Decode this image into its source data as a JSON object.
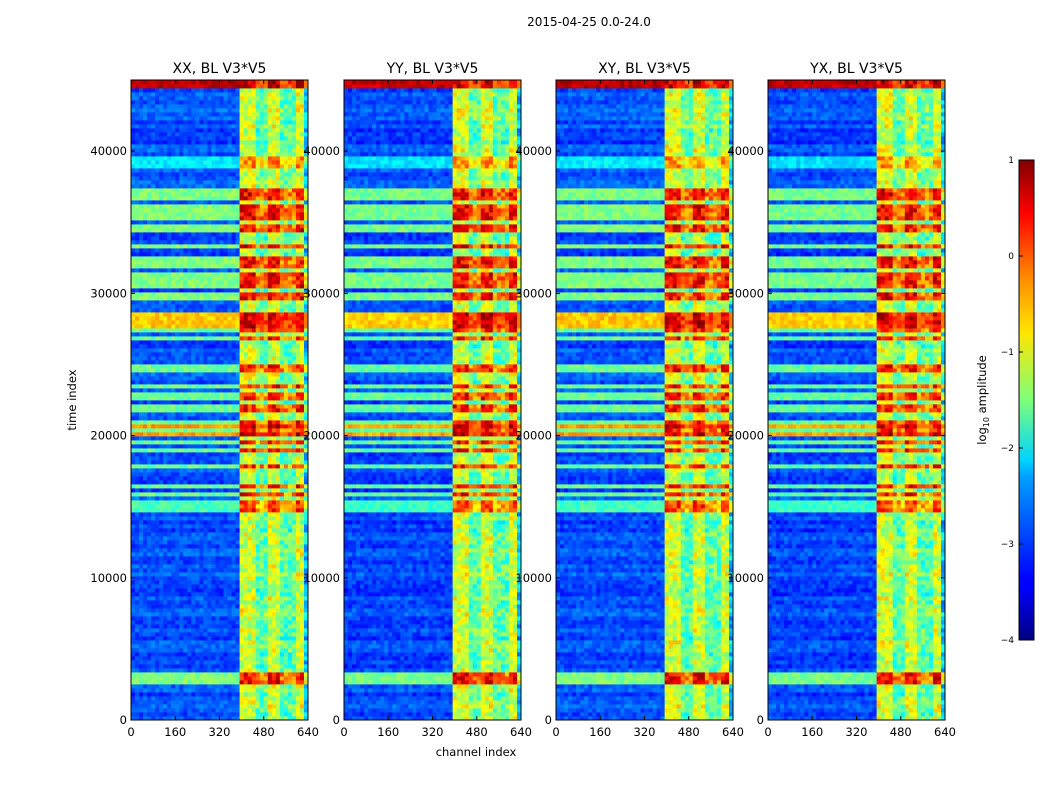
{
  "chart_data": {
    "type": "heatmap",
    "suptitle": "2015-04-25 0.0-24.0",
    "xlabel": "channel index",
    "ylabel": "time index",
    "xlim": [
      0,
      640
    ],
    "ylim": [
      0,
      45000
    ],
    "xticks": [
      0,
      160,
      320,
      480,
      640
    ],
    "yticks": [
      0,
      10000,
      20000,
      30000,
      40000
    ],
    "panels": [
      {
        "title": "XX, BL V3*V5"
      },
      {
        "title": "YY, BL V3*V5"
      },
      {
        "title": "XY, BL V3*V5"
      },
      {
        "title": "YX, BL V3*V5"
      }
    ],
    "colorbar": {
      "label_prefix": "log",
      "label_sub": "10",
      "label_suffix": " amplitude",
      "range": [
        -4,
        1
      ],
      "ticks": [
        "1",
        "0",
        "−1",
        "−2",
        "−3",
        "−4"
      ],
      "tick_values": [
        1,
        0,
        -1,
        -2,
        -3,
        -4
      ]
    },
    "colormap": "jet",
    "features": {
      "rfi_channel_band": [
        400,
        640
      ],
      "bright_time_rows": [
        3000,
        20500,
        28000,
        44500
      ],
      "background_level": -3,
      "band_level": -1.2
    }
  }
}
